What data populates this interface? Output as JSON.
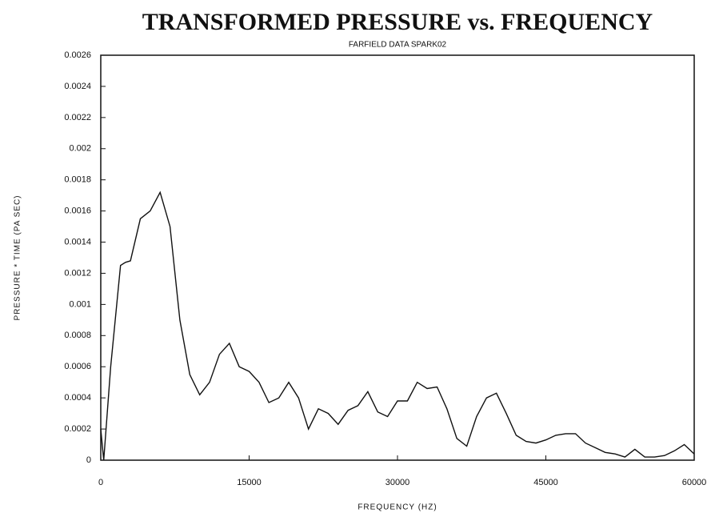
{
  "chart_data": {
    "type": "line",
    "title": "TRANSFORMED PRESSURE vs. FREQUENCY",
    "subtitle": "FARFIELD DATA SPARK02",
    "x_label": "FREQUENCY (HZ)",
    "y_label": "PRESSURE * TIME (PA SEC)",
    "color": "#111111",
    "grid": false,
    "xlim": [
      0,
      60000
    ],
    "xticks": [
      0,
      15000,
      30000,
      45000,
      60000
    ],
    "ylim": [
      0,
      0.0026
    ],
    "yticks": [
      0,
      0.0002,
      0.0004,
      0.0006,
      0.0008,
      0.001,
      0.0012,
      0.0014,
      0.0016,
      0.0018,
      0.002,
      0.0022,
      0.0024,
      0.0026
    ],
    "x": [
      0,
      300,
      1000,
      2000,
      2500,
      3000,
      4000,
      5000,
      6000,
      7000,
      8000,
      9000,
      10000,
      11000,
      12000,
      13000,
      14000,
      15000,
      16000,
      17000,
      18000,
      19000,
      20000,
      21000,
      22000,
      23000,
      24000,
      25000,
      26000,
      27000,
      28000,
      29000,
      30000,
      31000,
      32000,
      33000,
      34000,
      35000,
      36000,
      37000,
      38000,
      39000,
      40000,
      41000,
      42000,
      43000,
      44000,
      45000,
      46000,
      47000,
      48000,
      49000,
      50000,
      51000,
      52000,
      53000,
      54000,
      55000,
      56000,
      57000,
      58000,
      59000,
      60000
    ],
    "values": [
      0.0002,
      0,
      0.0006,
      0.00125,
      0.00127,
      0.00128,
      0.00155,
      0.0016,
      0.00172,
      0.0015,
      0.0009,
      0.00055,
      0.00042,
      0.0005,
      0.00068,
      0.00075,
      0.0006,
      0.00057,
      0.0005,
      0.00037,
      0.0004,
      0.0005,
      0.0004,
      0.0002,
      0.00033,
      0.0003,
      0.00023,
      0.00032,
      0.00035,
      0.00044,
      0.00031,
      0.00028,
      0.00038,
      0.00038,
      0.0005,
      0.00046,
      0.00047,
      0.00033,
      0.00014,
      9e-05,
      0.00028,
      0.0004,
      0.00043,
      0.0003,
      0.00016,
      0.00012,
      0.00011,
      0.00013,
      0.00016,
      0.00017,
      0.00017,
      0.00011,
      8e-05,
      5e-05,
      4e-05,
      2e-05,
      7e-05,
      2e-05,
      2e-05,
      3e-05,
      6e-05,
      0.0001,
      4e-05
    ]
  }
}
